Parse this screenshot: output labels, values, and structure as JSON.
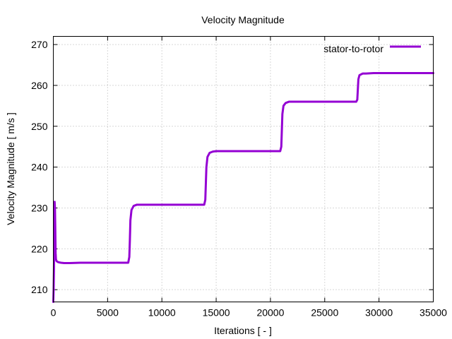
{
  "chart_data": {
    "type": "line",
    "title": "Velocity Magnitude",
    "xlabel": "Iterations [ - ]",
    "ylabel": "Velocity Magnitude [ m/s ]",
    "xlim": [
      0,
      35000
    ],
    "ylim": [
      207,
      272
    ],
    "xticks": [
      0,
      5000,
      10000,
      15000,
      20000,
      25000,
      30000,
      35000
    ],
    "yticks": [
      210,
      220,
      230,
      240,
      250,
      260,
      270
    ],
    "grid": true,
    "legend_position": "top-right",
    "series": [
      {
        "name": "stator-to-rotor",
        "color": "#9400d3",
        "x": [
          0,
          30,
          60,
          90,
          120,
          150,
          180,
          210,
          240,
          270,
          300,
          350,
          400,
          500,
          700,
          1000,
          1500,
          2500,
          4000,
          6000,
          6900,
          7000,
          7050,
          7100,
          7200,
          7400,
          7700,
          8000,
          9000,
          11000,
          13000,
          13900,
          14000,
          14050,
          14100,
          14200,
          14400,
          14700,
          15000,
          16000,
          18000,
          20000,
          20900,
          21000,
          21050,
          21100,
          21200,
          21400,
          21700,
          22000,
          23000,
          25000,
          27000,
          27900,
          28000,
          28050,
          28100,
          28200,
          28500,
          28800,
          29500,
          31000,
          33000,
          35000
        ],
        "y": [
          207,
          210,
          215,
          225,
          231.5,
          230,
          225,
          219,
          217.5,
          217.2,
          217,
          216.9,
          216.8,
          216.7,
          216.6,
          216.5,
          216.5,
          216.6,
          216.6,
          216.6,
          216.6,
          218,
          222,
          227,
          229.5,
          230.5,
          230.8,
          230.8,
          230.8,
          230.8,
          230.8,
          230.8,
          232,
          236,
          240,
          242.5,
          243.5,
          243.8,
          243.9,
          243.9,
          243.9,
          243.9,
          243.9,
          245,
          249,
          253,
          255,
          255.7,
          256,
          256,
          256,
          256,
          256,
          256,
          256.5,
          259,
          261.5,
          262.5,
          262.9,
          262.9,
          263,
          263,
          263,
          263
        ]
      }
    ]
  }
}
